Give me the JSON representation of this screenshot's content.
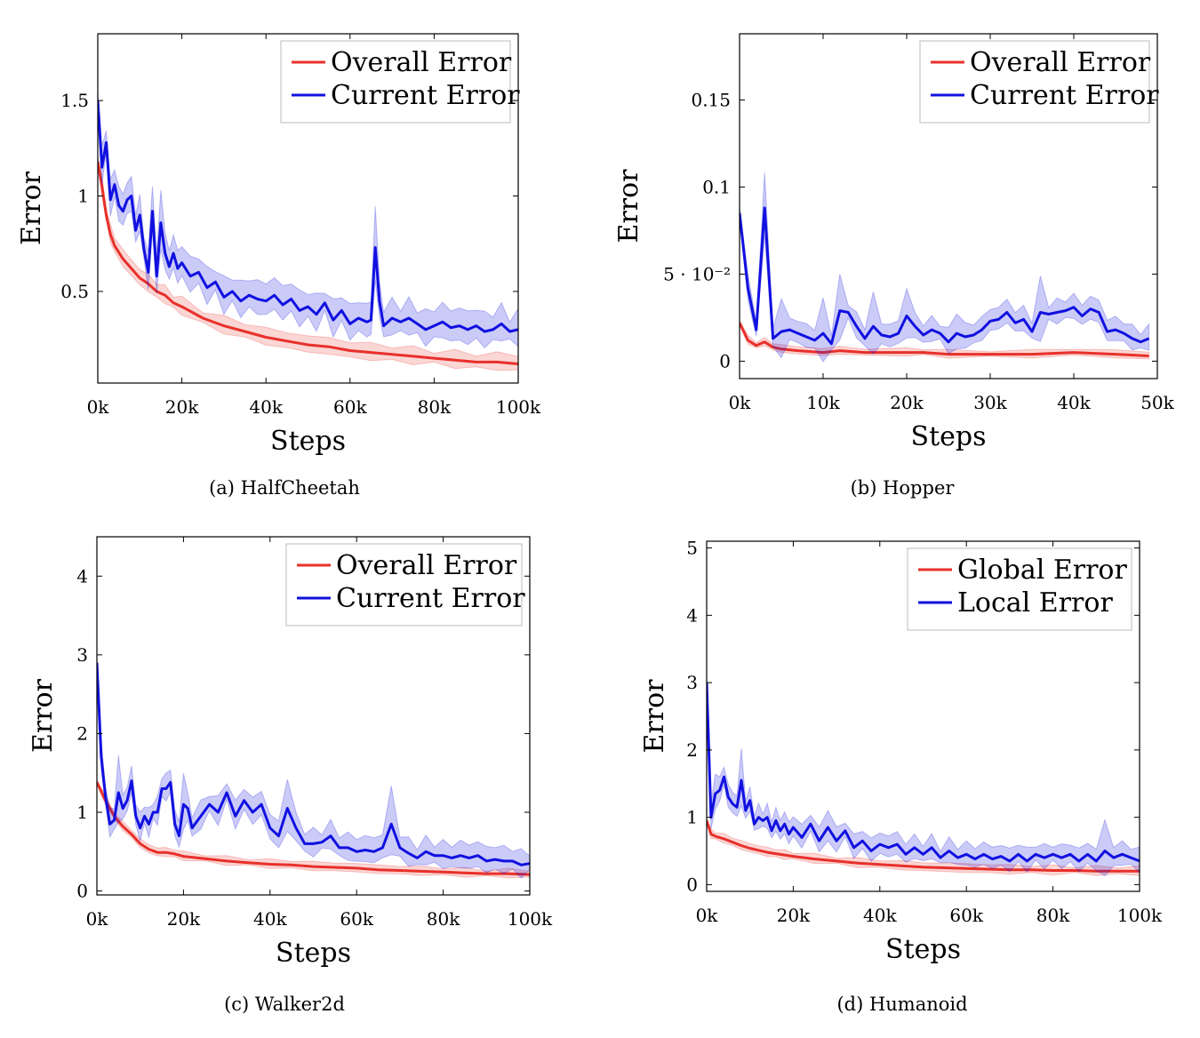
{
  "chart_data": [
    {
      "type": "line",
      "caption": "(a) HalfCheetah",
      "xlabel": "Steps",
      "ylabel": "Error",
      "xlim": [
        0,
        100
      ],
      "ylim": [
        0.02,
        1.85
      ],
      "xticks": [
        0,
        20,
        40,
        60,
        80,
        100
      ],
      "xtick_labels": [
        "0k",
        "20k",
        "40k",
        "60k",
        "80k",
        "100k"
      ],
      "yticks": [
        0.5,
        1,
        1.5
      ],
      "ytick_labels": [
        "0.5",
        "1",
        "1.5"
      ],
      "legend_position": "top-right",
      "series": [
        {
          "name": "Overall Error",
          "color": "#e8302a",
          "x": [
            0,
            1,
            2,
            3,
            4,
            6,
            8,
            10,
            12,
            14,
            16,
            18,
            20,
            25,
            30,
            35,
            40,
            45,
            50,
            55,
            60,
            65,
            70,
            75,
            80,
            85,
            90,
            95,
            100
          ],
          "values": [
            1.18,
            1.05,
            0.9,
            0.8,
            0.74,
            0.67,
            0.62,
            0.57,
            0.54,
            0.5,
            0.48,
            0.44,
            0.42,
            0.36,
            0.32,
            0.29,
            0.26,
            0.24,
            0.22,
            0.21,
            0.19,
            0.18,
            0.17,
            0.16,
            0.15,
            0.14,
            0.13,
            0.13,
            0.12
          ],
          "band": 0.04
        },
        {
          "name": "Current Error",
          "color": "#1010e0",
          "x": [
            0,
            1,
            2,
            3,
            4,
            5,
            6,
            7,
            8,
            9,
            10,
            11,
            12,
            13,
            14,
            15,
            16,
            17,
            18,
            19,
            20,
            22,
            24,
            26,
            28,
            30,
            32,
            34,
            36,
            38,
            40,
            42,
            44,
            46,
            48,
            50,
            52,
            54,
            56,
            58,
            60,
            62,
            64,
            65,
            66,
            67,
            68,
            70,
            72,
            74,
            76,
            78,
            80,
            82,
            84,
            86,
            88,
            90,
            92,
            94,
            96,
            98,
            100
          ],
          "values": [
            1.5,
            1.15,
            1.28,
            0.98,
            1.06,
            0.95,
            0.92,
            0.98,
            1.0,
            0.82,
            0.9,
            0.72,
            0.6,
            0.92,
            0.58,
            0.86,
            0.7,
            0.63,
            0.7,
            0.62,
            0.65,
            0.58,
            0.6,
            0.52,
            0.55,
            0.47,
            0.5,
            0.45,
            0.48,
            0.46,
            0.45,
            0.48,
            0.43,
            0.46,
            0.4,
            0.42,
            0.38,
            0.44,
            0.35,
            0.4,
            0.33,
            0.36,
            0.34,
            0.35,
            0.73,
            0.45,
            0.32,
            0.36,
            0.34,
            0.36,
            0.33,
            0.3,
            0.32,
            0.34,
            0.31,
            0.32,
            0.3,
            0.32,
            0.29,
            0.3,
            0.33,
            0.29,
            0.3
          ],
          "band": 0.08
        }
      ]
    },
    {
      "type": "line",
      "caption": "(b) Hopper",
      "xlabel": "Steps",
      "ylabel": "Error",
      "xlim": [
        0,
        50
      ],
      "ylim": [
        -0.01,
        0.188
      ],
      "xticks": [
        0,
        10,
        20,
        30,
        40,
        50
      ],
      "xtick_labels": [
        "0k",
        "10k",
        "20k",
        "30k",
        "40k",
        "50k"
      ],
      "yticks": [
        0,
        0.05,
        0.1,
        0.15
      ],
      "ytick_labels": [
        "0",
        "5 · 10⁻²",
        "0.1",
        "0.15"
      ],
      "legend_position": "top-right",
      "series": [
        {
          "name": "Overall Error",
          "color": "#e8302a",
          "x": [
            0,
            1,
            2,
            3,
            4,
            5,
            7,
            10,
            12,
            15,
            20,
            22,
            25,
            30,
            35,
            40,
            45,
            49
          ],
          "values": [
            0.022,
            0.012,
            0.009,
            0.011,
            0.008,
            0.007,
            0.006,
            0.005,
            0.006,
            0.005,
            0.005,
            0.005,
            0.004,
            0.004,
            0.004,
            0.005,
            0.004,
            0.003
          ],
          "band": 0.002
        },
        {
          "name": "Current Error",
          "color": "#1010e0",
          "x": [
            0,
            1,
            2,
            3,
            4,
            5,
            6,
            7,
            8,
            9,
            10,
            11,
            12,
            13,
            14,
            15,
            16,
            17,
            18,
            19,
            20,
            21,
            22,
            23,
            24,
            25,
            26,
            27,
            28,
            29,
            30,
            31,
            32,
            33,
            34,
            35,
            36,
            37,
            38,
            39,
            40,
            41,
            42,
            43,
            44,
            45,
            46,
            47,
            48,
            49
          ],
          "values": [
            0.085,
            0.042,
            0.018,
            0.088,
            0.013,
            0.017,
            0.018,
            0.016,
            0.014,
            0.012,
            0.016,
            0.01,
            0.029,
            0.028,
            0.02,
            0.013,
            0.02,
            0.015,
            0.014,
            0.016,
            0.026,
            0.02,
            0.015,
            0.018,
            0.016,
            0.011,
            0.016,
            0.014,
            0.015,
            0.018,
            0.023,
            0.024,
            0.028,
            0.022,
            0.024,
            0.017,
            0.028,
            0.027,
            0.028,
            0.029,
            0.031,
            0.026,
            0.03,
            0.028,
            0.017,
            0.018,
            0.016,
            0.013,
            0.011,
            0.013
          ],
          "band": 0.006
        }
      ]
    },
    {
      "type": "line",
      "caption": "(c) Walker2d",
      "xlabel": "Steps",
      "ylabel": "Error",
      "xlim": [
        0,
        100
      ],
      "ylim": [
        -0.05,
        4.5
      ],
      "xticks": [
        0,
        20,
        40,
        60,
        80,
        100
      ],
      "xtick_labels": [
        "0k",
        "20k",
        "40k",
        "60k",
        "80k",
        "100k"
      ],
      "yticks": [
        0,
        1,
        2,
        3,
        4
      ],
      "ytick_labels": [
        "0",
        "1",
        "2",
        "3",
        "4"
      ],
      "legend_position": "top-right",
      "series": [
        {
          "name": "Overall Error",
          "color": "#e8302a",
          "x": [
            0,
            2,
            4,
            6,
            8,
            10,
            12,
            14,
            16,
            18,
            20,
            25,
            30,
            35,
            40,
            45,
            50,
            55,
            60,
            65,
            70,
            75,
            80,
            85,
            90,
            95,
            100
          ],
          "values": [
            1.38,
            1.15,
            0.95,
            0.82,
            0.72,
            0.6,
            0.53,
            0.49,
            0.49,
            0.47,
            0.44,
            0.41,
            0.38,
            0.36,
            0.34,
            0.33,
            0.31,
            0.3,
            0.29,
            0.27,
            0.26,
            0.25,
            0.24,
            0.23,
            0.22,
            0.22,
            0.21
          ],
          "band": 0.05
        },
        {
          "name": "Current Error",
          "color": "#1010e0",
          "x": [
            0,
            1,
            2,
            3,
            4,
            5,
            6,
            7,
            8,
            9,
            10,
            11,
            12,
            13,
            14,
            15,
            16,
            17,
            18,
            19,
            20,
            21,
            22,
            24,
            26,
            28,
            30,
            32,
            34,
            36,
            38,
            40,
            42,
            44,
            46,
            48,
            50,
            52,
            54,
            56,
            58,
            60,
            62,
            64,
            66,
            68,
            70,
            72,
            74,
            76,
            78,
            80,
            82,
            84,
            86,
            88,
            90,
            92,
            94,
            96,
            98,
            100
          ],
          "values": [
            2.9,
            1.7,
            1.2,
            0.85,
            0.9,
            1.25,
            1.05,
            1.15,
            1.4,
            0.95,
            0.8,
            0.95,
            0.85,
            1.0,
            1.0,
            1.3,
            1.3,
            1.38,
            0.85,
            0.7,
            1.1,
            1.05,
            0.8,
            0.95,
            1.1,
            1.0,
            1.25,
            0.95,
            1.15,
            1.0,
            1.1,
            0.8,
            0.7,
            1.05,
            0.8,
            0.6,
            0.6,
            0.62,
            0.7,
            0.55,
            0.55,
            0.5,
            0.52,
            0.5,
            0.55,
            0.85,
            0.55,
            0.48,
            0.42,
            0.5,
            0.45,
            0.45,
            0.42,
            0.45,
            0.42,
            0.45,
            0.38,
            0.4,
            0.38,
            0.38,
            0.33,
            0.35
          ],
          "band": 0.15
        }
      ]
    },
    {
      "type": "line",
      "caption": "(d) Humanoid",
      "xlabel": "Steps",
      "ylabel": "Error",
      "xlim": [
        0,
        100
      ],
      "ylim": [
        -0.1,
        5.1
      ],
      "xticks": [
        0,
        20,
        40,
        60,
        80,
        100
      ],
      "xtick_labels": [
        "0k",
        "20k",
        "40k",
        "60k",
        "80k",
        "100k"
      ],
      "yticks": [
        0,
        1,
        2,
        3,
        4,
        5
      ],
      "ytick_labels": [
        "0",
        "1",
        "2",
        "3",
        "4",
        "5"
      ],
      "legend_position": "top-right",
      "series": [
        {
          "name": "Global Error",
          "color": "#e8302a",
          "x": [
            0,
            1,
            2,
            4,
            6,
            8,
            10,
            12,
            14,
            16,
            18,
            20,
            25,
            30,
            35,
            40,
            45,
            50,
            55,
            60,
            65,
            70,
            75,
            80,
            85,
            90,
            95,
            100
          ],
          "values": [
            0.95,
            0.75,
            0.72,
            0.68,
            0.63,
            0.58,
            0.54,
            0.51,
            0.48,
            0.46,
            0.44,
            0.42,
            0.38,
            0.35,
            0.32,
            0.3,
            0.28,
            0.26,
            0.25,
            0.24,
            0.23,
            0.22,
            0.22,
            0.21,
            0.21,
            0.2,
            0.2,
            0.2
          ],
          "band": 0.06
        },
        {
          "name": "Local Error",
          "color": "#1010e0",
          "x": [
            0,
            1,
            2,
            3,
            4,
            5,
            6,
            7,
            8,
            9,
            10,
            11,
            12,
            13,
            14,
            15,
            16,
            17,
            18,
            19,
            20,
            22,
            24,
            26,
            28,
            30,
            32,
            34,
            36,
            38,
            40,
            42,
            44,
            46,
            48,
            50,
            52,
            54,
            56,
            58,
            60,
            62,
            64,
            66,
            68,
            70,
            72,
            74,
            76,
            78,
            80,
            82,
            84,
            86,
            88,
            90,
            92,
            94,
            96,
            98,
            100
          ],
          "values": [
            3.0,
            1.0,
            1.35,
            1.4,
            1.6,
            1.3,
            1.2,
            1.15,
            1.55,
            1.1,
            1.25,
            0.9,
            1.0,
            0.95,
            1.0,
            0.8,
            0.95,
            0.8,
            0.9,
            0.75,
            0.85,
            0.7,
            0.9,
            0.65,
            0.85,
            0.65,
            0.8,
            0.55,
            0.65,
            0.5,
            0.6,
            0.55,
            0.6,
            0.45,
            0.55,
            0.45,
            0.55,
            0.4,
            0.5,
            0.4,
            0.45,
            0.38,
            0.45,
            0.38,
            0.42,
            0.35,
            0.45,
            0.35,
            0.45,
            0.4,
            0.45,
            0.4,
            0.45,
            0.35,
            0.45,
            0.35,
            0.5,
            0.4,
            0.45,
            0.4,
            0.35
          ],
          "band": 0.15
        }
      ]
    }
  ]
}
